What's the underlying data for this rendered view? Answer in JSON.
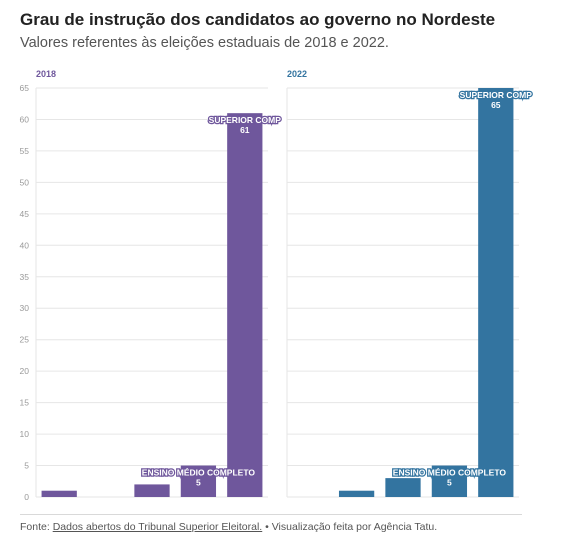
{
  "header": {
    "title": "Grau de instrução dos candidatos ao governo no Nordeste",
    "subtitle": "Valores referentes às eleições estaduais de 2018 e 2022."
  },
  "footer": {
    "prefix": "Fonte: ",
    "link_text": "Dados abertos do Tribunal Superior Eleitoral.",
    "suffix": " • Visualização feita por Agência Tatu."
  },
  "chart_data": {
    "type": "bar",
    "ylim": [
      0,
      65
    ],
    "yticks": [
      "0",
      "5",
      "10",
      "15",
      "20",
      "25",
      "30",
      "35",
      "40",
      "45",
      "50",
      "55",
      "60",
      "65"
    ],
    "grid": true,
    "panels": [
      {
        "name": "2018",
        "color": "#6f579c",
        "values": [
          1,
          0,
          2,
          5,
          61
        ],
        "labels": [
          {
            "index": 3,
            "category": "ENSINO MÉDIO COMPLETO",
            "value": "5"
          },
          {
            "index": 4,
            "category": "SUPERIOR COMP",
            "value": "61"
          }
        ]
      },
      {
        "name": "2022",
        "color": "#3374a0",
        "values": [
          0,
          1,
          3,
          5,
          65
        ],
        "labels": [
          {
            "index": 3,
            "category": "ENSINO MÉDIO COMPLETO",
            "value": "5"
          },
          {
            "index": 4,
            "category": "SUPERIOR COMP",
            "value": "65"
          }
        ]
      }
    ]
  }
}
